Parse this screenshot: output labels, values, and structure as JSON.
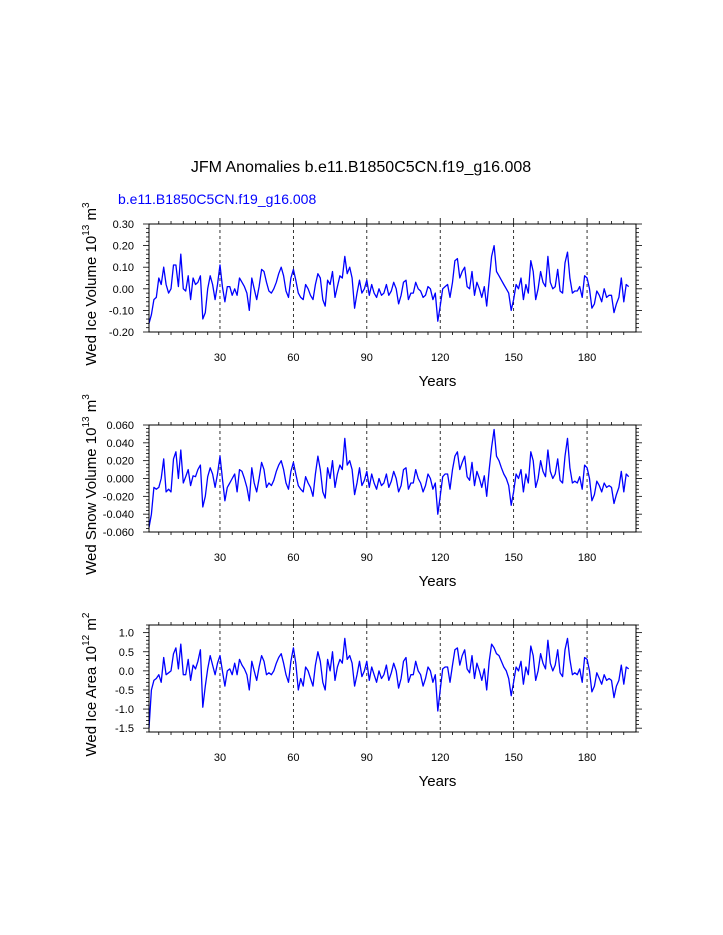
{
  "title": "JFM Anomalies b.e11.B1850C5CN.f19_g16.008",
  "legend_label": "b.e11.B1850C5CN.f19_g16.008",
  "series_color": "#0000ff",
  "chart_data": [
    {
      "type": "line",
      "name": "Wed Ice Volume",
      "ylabel_main": "Wed Ice Volume 10",
      "ylabel_exp": "13",
      "ylabel_unit": " m",
      "ylabel_unit_exp": "3",
      "xlabel": "Years",
      "xlim": [
        1,
        200
      ],
      "ylim": [
        -0.2,
        0.3
      ],
      "xticks": [
        30,
        60,
        90,
        120,
        150,
        180
      ],
      "xtick_labels": [
        "30",
        "60",
        "90",
        "120",
        "150",
        "180"
      ],
      "yticks": [
        -0.2,
        -0.1,
        0.0,
        0.1,
        0.2,
        0.3
      ],
      "ytick_labels": [
        "-0.20",
        "-0.10",
        "0.00",
        "0.10",
        "0.20",
        "0.30"
      ],
      "grid": "x-dashed",
      "y": [
        -0.16,
        -0.12,
        -0.05,
        -0.04,
        0.05,
        0.02,
        0.1,
        0.02,
        -0.02,
        0.0,
        0.11,
        0.11,
        0.01,
        0.16,
        0.0,
        -0.01,
        0.06,
        -0.05,
        0.05,
        0.02,
        0.03,
        0.06,
        -0.14,
        -0.11,
        0.0,
        0.06,
        0.02,
        -0.05,
        0.02,
        0.11,
        0.01,
        -0.06,
        0.01,
        0.01,
        -0.03,
        0.0,
        -0.03,
        0.05,
        0.03,
        0.01,
        -0.02,
        -0.1,
        0.05,
        0.0,
        -0.05,
        0.01,
        0.09,
        0.08,
        0.03,
        -0.01,
        -0.02,
        0.0,
        0.03,
        0.07,
        0.1,
        0.06,
        -0.01,
        -0.04,
        0.05,
        0.09,
        0.04,
        -0.02,
        -0.04,
        -0.05,
        0.02,
        0.0,
        -0.03,
        -0.05,
        0.02,
        0.07,
        0.05,
        -0.05,
        -0.08,
        0.04,
        0.02,
        0.08,
        -0.04,
        0.01,
        0.06,
        0.05,
        0.15,
        0.07,
        0.1,
        0.05,
        -0.09,
        -0.02,
        0.04,
        -0.02,
        0.0,
        0.04,
        -0.03,
        0.02,
        -0.02,
        -0.04,
        0.0,
        -0.03,
        -0.02,
        0.02,
        -0.03,
        -0.01,
        0.03,
        0.0,
        -0.07,
        -0.03,
        0.03,
        0.04,
        -0.05,
        -0.02,
        -0.02,
        0.03,
        0.0,
        -0.01,
        -0.04,
        -0.03,
        0.01,
        0.0,
        -0.05,
        -0.02,
        -0.15,
        -0.08,
        0.0,
        0.01,
        0.02,
        -0.04,
        0.03,
        0.13,
        0.14,
        0.05,
        0.08,
        0.1,
        0.01,
        0.0,
        0.08,
        -0.03,
        0.03,
        0.0,
        -0.04,
        0.01,
        -0.08,
        0.04,
        0.15,
        0.2,
        0.08,
        0.06,
        0.04,
        0.02,
        0.0,
        -0.02,
        -0.1,
        -0.05,
        0.02,
        0.0,
        0.05,
        -0.05,
        0.02,
        -0.02,
        0.13,
        0.08,
        -0.05,
        0.0,
        0.08,
        0.03,
        0.01,
        0.15,
        0.03,
        0.0,
        0.01,
        0.09,
        -0.01,
        -0.02,
        0.12,
        0.17,
        0.05,
        -0.02,
        -0.01,
        -0.01,
        0.01,
        -0.04,
        0.06,
        0.05,
        0.0,
        -0.09,
        -0.07,
        -0.01,
        -0.03,
        -0.06,
        0.0,
        -0.04,
        -0.03,
        -0.03,
        -0.11,
        -0.07,
        -0.04,
        0.05,
        -0.06,
        0.02,
        0.01
      ]
    },
    {
      "type": "line",
      "name": "Wed Snow Volume",
      "ylabel_main": "Wed Snow Volume 10",
      "ylabel_exp": "13",
      "ylabel_unit": " m",
      "ylabel_unit_exp": "3",
      "xlabel": "Years",
      "xlim": [
        1,
        200
      ],
      "ylim": [
        -0.06,
        0.06
      ],
      "xticks": [
        30,
        60,
        90,
        120,
        150,
        180
      ],
      "xtick_labels": [
        "30",
        "60",
        "90",
        "120",
        "150",
        "180"
      ],
      "yticks": [
        -0.06,
        -0.04,
        -0.02,
        0.0,
        0.02,
        0.04,
        0.06
      ],
      "ytick_labels": [
        "-0.060",
        "-0.040",
        "-0.020",
        "0.000",
        "0.020",
        "0.040",
        "0.060"
      ],
      "grid": "x-dashed",
      "y": [
        -0.055,
        -0.04,
        -0.01,
        -0.012,
        -0.01,
        0.0,
        0.022,
        -0.015,
        -0.012,
        -0.015,
        0.022,
        0.03,
        0.0,
        0.032,
        -0.005,
        0.002,
        0.01,
        -0.008,
        0.003,
        0.002,
        0.01,
        0.015,
        -0.032,
        -0.02,
        0.002,
        0.012,
        0.005,
        -0.01,
        0.005,
        0.025,
        0.0,
        -0.025,
        -0.01,
        -0.005,
        0.0,
        0.005,
        -0.015,
        0.01,
        0.008,
        0.0,
        -0.01,
        -0.025,
        0.012,
        -0.005,
        -0.015,
        0.0,
        0.018,
        0.01,
        -0.01,
        -0.005,
        -0.008,
        -0.002,
        0.008,
        0.015,
        0.02,
        0.01,
        -0.005,
        -0.012,
        0.008,
        0.018,
        0.005,
        -0.008,
        -0.012,
        -0.015,
        0.002,
        -0.005,
        -0.01,
        -0.02,
        0.005,
        0.025,
        0.01,
        -0.015,
        -0.022,
        0.012,
        0.0,
        0.02,
        -0.01,
        0.005,
        0.015,
        0.01,
        0.045,
        0.015,
        0.02,
        0.01,
        -0.018,
        -0.005,
        0.012,
        -0.008,
        -0.002,
        0.008,
        -0.01,
        0.005,
        -0.005,
        -0.012,
        0.0,
        -0.008,
        -0.005,
        0.005,
        -0.01,
        -0.003,
        0.008,
        0.0,
        -0.015,
        -0.008,
        0.01,
        0.012,
        -0.012,
        -0.005,
        -0.005,
        0.01,
        0.0,
        -0.005,
        -0.015,
        -0.008,
        0.005,
        0.0,
        -0.012,
        -0.005,
        -0.04,
        -0.02,
        0.002,
        0.005,
        0.005,
        -0.012,
        0.01,
        0.025,
        0.03,
        0.01,
        0.018,
        0.025,
        0.002,
        -0.002,
        0.018,
        -0.008,
        0.008,
        0.0,
        -0.01,
        0.003,
        -0.02,
        0.01,
        0.035,
        0.055,
        0.025,
        0.02,
        0.012,
        0.005,
        0.0,
        -0.008,
        -0.03,
        -0.015,
        0.005,
        0.0,
        0.01,
        -0.015,
        0.005,
        -0.005,
        0.03,
        0.02,
        -0.01,
        0.0,
        0.02,
        0.008,
        0.002,
        0.032,
        0.008,
        0.0,
        0.005,
        0.022,
        -0.002,
        -0.005,
        0.025,
        0.045,
        0.012,
        -0.005,
        -0.003,
        -0.005,
        0.002,
        -0.012,
        0.015,
        0.012,
        0.0,
        -0.025,
        -0.018,
        -0.003,
        -0.008,
        -0.015,
        -0.005,
        -0.01,
        -0.008,
        -0.01,
        -0.028,
        -0.018,
        -0.01,
        0.008,
        -0.015,
        0.005,
        0.002
      ]
    },
    {
      "type": "line",
      "name": "Wed Ice Area",
      "ylabel_main": "Wed Ice Area 10",
      "ylabel_exp": "12",
      "ylabel_unit": " m",
      "ylabel_unit_exp": "2",
      "xlabel": "Years",
      "xlim": [
        1,
        200
      ],
      "ylim": [
        -1.6,
        1.2
      ],
      "xticks": [
        30,
        60,
        90,
        120,
        150,
        180
      ],
      "xtick_labels": [
        "30",
        "60",
        "90",
        "120",
        "150",
        "180"
      ],
      "yticks": [
        -1.5,
        -1.0,
        -0.5,
        0.0,
        0.5,
        1.0
      ],
      "ytick_labels": [
        "-1.5",
        "-1.0",
        "-0.5",
        "0.0",
        "0.5",
        "1.0"
      ],
      "grid": "x-dashed",
      "y": [
        -1.5,
        -0.5,
        -0.25,
        -0.2,
        -0.1,
        -0.3,
        0.35,
        -0.1,
        -0.05,
        0.0,
        0.45,
        0.6,
        0.05,
        0.7,
        -0.1,
        -0.1,
        0.3,
        -0.25,
        0.15,
        0.05,
        0.25,
        0.55,
        -0.95,
        -0.4,
        0.05,
        0.4,
        0.15,
        -0.1,
        0.2,
        0.4,
        0.0,
        -0.4,
        0.0,
        0.05,
        -0.1,
        0.2,
        -0.1,
        0.3,
        0.15,
        0.05,
        -0.1,
        -0.5,
        0.25,
        0.0,
        -0.25,
        0.1,
        0.4,
        0.25,
        -0.1,
        -0.05,
        -0.1,
        0.0,
        0.2,
        0.35,
        0.45,
        0.2,
        -0.1,
        -0.3,
        0.25,
        0.6,
        0.2,
        -0.5,
        -0.2,
        -0.4,
        0.1,
        0.0,
        -0.2,
        -0.4,
        0.15,
        0.5,
        0.25,
        -0.3,
        -0.5,
        0.3,
        0.0,
        0.5,
        -0.25,
        0.1,
        0.3,
        0.2,
        0.85,
        0.3,
        0.4,
        0.2,
        -0.4,
        -0.1,
        0.25,
        -0.15,
        0.0,
        0.25,
        -0.25,
        0.1,
        -0.1,
        -0.3,
        0.0,
        -0.2,
        -0.1,
        0.15,
        -0.25,
        -0.05,
        0.2,
        0.0,
        -0.45,
        -0.2,
        0.25,
        0.35,
        -0.3,
        -0.1,
        -0.1,
        0.25,
        0.0,
        -0.1,
        -0.4,
        -0.2,
        0.1,
        0.0,
        -0.3,
        -0.1,
        -1.05,
        -0.5,
        0.05,
        0.1,
        0.1,
        -0.3,
        0.15,
        0.55,
        0.6,
        0.15,
        0.4,
        0.55,
        0.05,
        -0.05,
        0.4,
        -0.2,
        0.2,
        0.0,
        -0.25,
        0.05,
        -0.5,
        0.25,
        0.7,
        0.6,
        0.45,
        0.4,
        0.25,
        0.1,
        0.0,
        -0.2,
        -0.65,
        -0.3,
        0.1,
        0.0,
        0.25,
        -0.35,
        0.1,
        -0.1,
        0.65,
        0.4,
        -0.25,
        0.0,
        0.45,
        0.2,
        0.05,
        0.8,
        0.2,
        0.0,
        0.15,
        0.55,
        -0.05,
        -0.15,
        0.55,
        0.85,
        0.3,
        -0.1,
        -0.05,
        -0.1,
        0.05,
        -0.3,
        0.35,
        0.3,
        0.0,
        -0.55,
        -0.4,
        -0.05,
        -0.2,
        -0.35,
        -0.1,
        -0.25,
        -0.2,
        -0.25,
        -0.7,
        -0.4,
        -0.25,
        0.15,
        -0.35,
        0.1,
        0.05
      ]
    }
  ]
}
